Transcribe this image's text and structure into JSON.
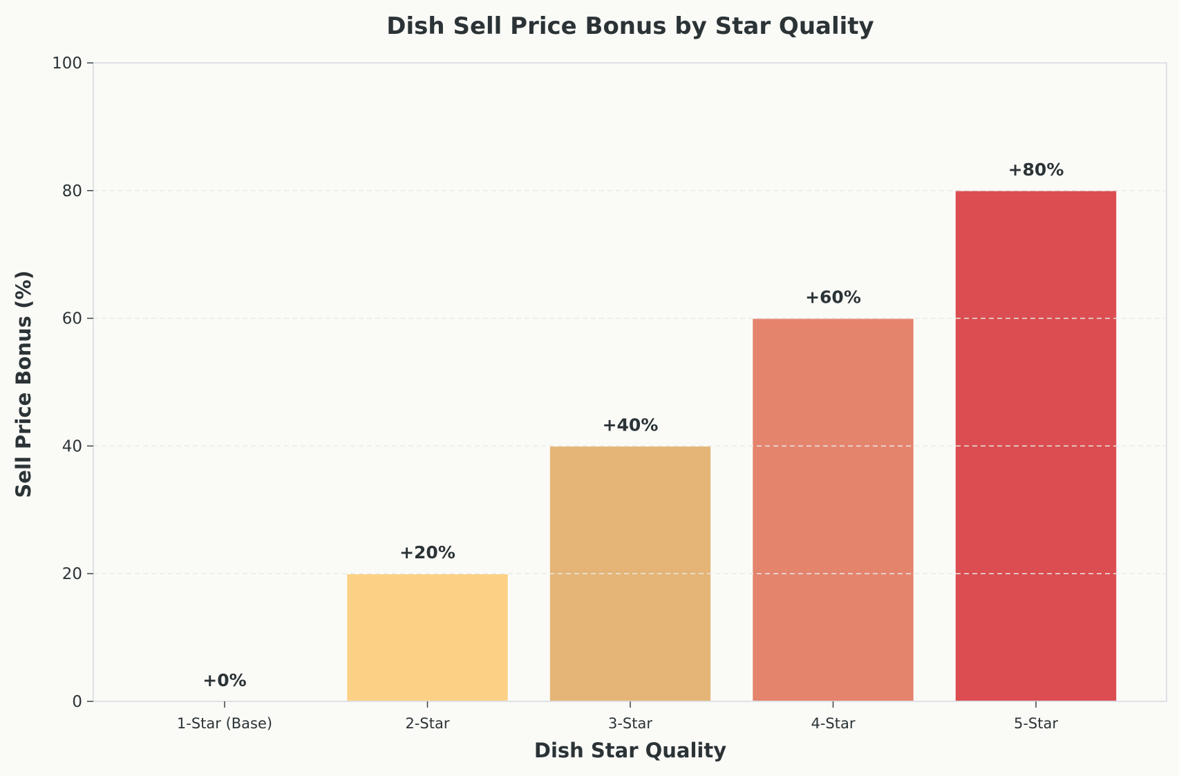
{
  "chart_data": {
    "type": "bar",
    "title": "Dish Sell Price Bonus by Star Quality",
    "xlabel": "Dish Star Quality",
    "ylabel": "Sell Price Bonus (%)",
    "categories": [
      "1-Star (Base)",
      "2-Star",
      "3-Star",
      "4-Star",
      "5-Star"
    ],
    "values": [
      0,
      20,
      40,
      60,
      80
    ],
    "data_labels": [
      "+0%",
      "+20%",
      "+40%",
      "+60%",
      "+80%"
    ],
    "colors": [
      "#fdd9a0",
      "#fcd185",
      "#e4b577",
      "#e4846d",
      "#db4d50"
    ],
    "ylim": [
      0,
      100
    ],
    "yticks": [
      0,
      20,
      40,
      60,
      80,
      100
    ],
    "grid": "y-dashed",
    "legend": "none"
  },
  "style": {
    "background": "#fafaf7",
    "spine_color": "#dde1e6",
    "grid_color": "#e9e9e6",
    "text_color": "#2b3336"
  }
}
